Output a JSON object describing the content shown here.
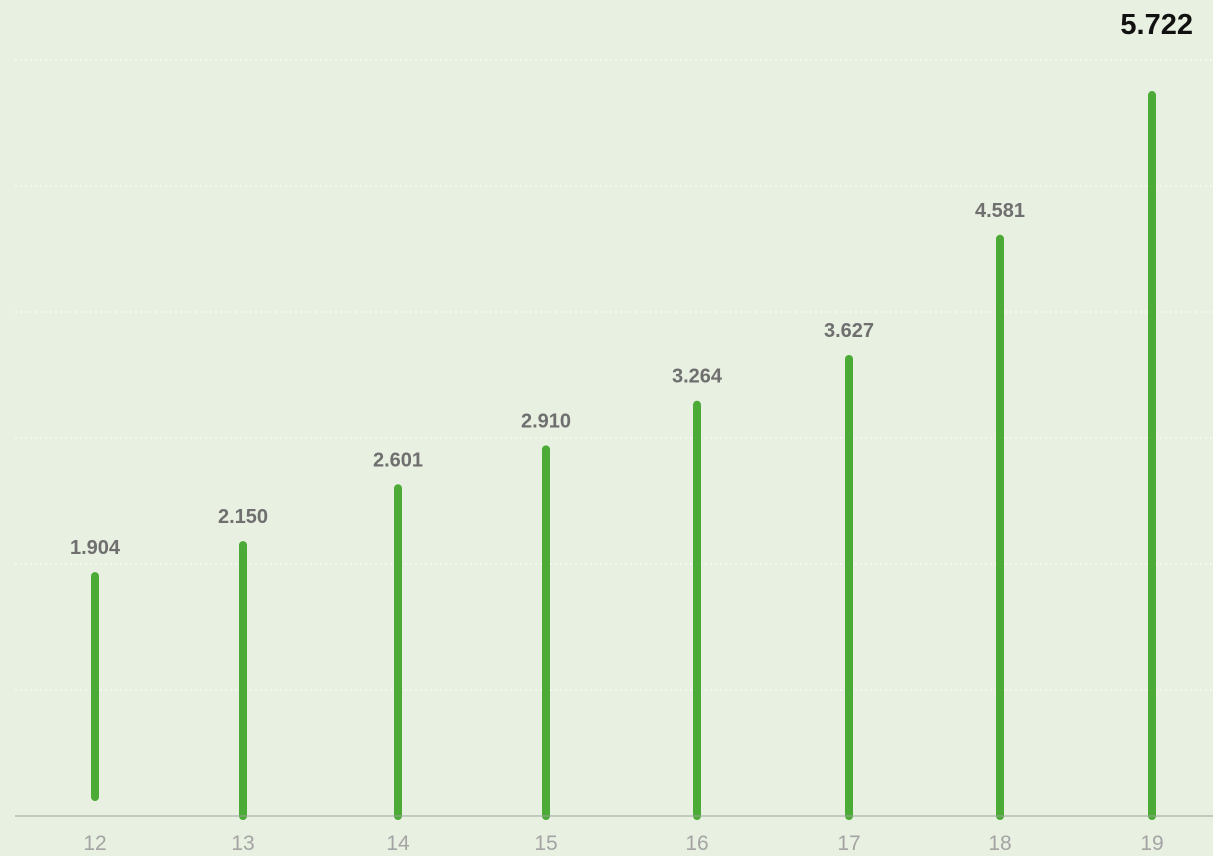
{
  "chart_data": {
    "type": "bar",
    "title": "",
    "xlabel": "",
    "ylabel": "",
    "categories": [
      "12",
      "13",
      "14",
      "15",
      "16",
      "17",
      "18",
      "19"
    ],
    "values": [
      1.904,
      2.15,
      2.601,
      2.91,
      3.264,
      3.627,
      4.581,
      5.722
    ],
    "value_labels": [
      "1.904",
      "2.150",
      "2.601",
      "2.910",
      "3.264",
      "3.627",
      "4.581",
      "5.722"
    ],
    "highlight_index": 7,
    "ylim": [
      0,
      6.0
    ],
    "grid": true,
    "legend": "none",
    "colors": {
      "background": "#e8f0e1",
      "bar": "#4caa37",
      "label": "#6f6f6f",
      "highlight_label": "#111111",
      "tick": "#a4a4a4",
      "grid": "#ffffff",
      "axis": "#9aa39a"
    }
  }
}
